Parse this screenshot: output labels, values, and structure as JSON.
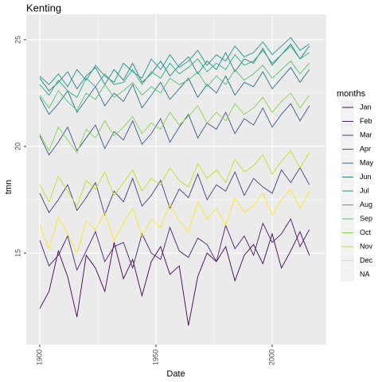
{
  "chart_data": {
    "type": "line",
    "title": "Kenting",
    "x_label": "Date",
    "y_label": "tmn",
    "legend_title": "months",
    "legend": "right",
    "grid": true,
    "x": [
      1900,
      1904,
      1908,
      1912,
      1916,
      1920,
      1924,
      1928,
      1932,
      1936,
      1940,
      1944,
      1948,
      1952,
      1956,
      1960,
      1964,
      1968,
      1972,
      1976,
      1980,
      1984,
      1988,
      1992,
      1996,
      2000,
      2004,
      2008,
      2012,
      2016
    ],
    "xlim": [
      1894.2,
      2023.3
    ],
    "xticks": [
      1900,
      1950,
      2000
    ],
    "ylim": [
      10.71,
      26.19
    ],
    "yticks": [
      15,
      20,
      25
    ],
    "series": [
      {
        "name": "Jan",
        "color": "#440154",
        "values": [
          12.4,
          13.2,
          15.1,
          13.9,
          12.0,
          14.9,
          14.3,
          13.2,
          15.5,
          13.8,
          14.7,
          13.0,
          14.6,
          15.3,
          14.0,
          14.4,
          11.6,
          13.9,
          15.0,
          14.6,
          15.3,
          13.7,
          14.9,
          15.4,
          14.5,
          15.9,
          14.3,
          15.1,
          16.0,
          14.9
        ]
      },
      {
        "name": "Feb",
        "color": "#482173",
        "values": [
          15.6,
          14.4,
          14.9,
          15.8,
          14.2,
          15.1,
          16.0,
          14.6,
          15.3,
          15.5,
          14.3,
          15.9,
          15.0,
          14.7,
          16.2,
          15.1,
          14.8,
          15.7,
          15.4,
          14.6,
          16.3,
          15.2,
          15.8,
          14.9,
          16.4,
          15.5,
          15.9,
          16.6,
          15.3,
          16.1
        ]
      },
      {
        "name": "Mar",
        "color": "#433E85",
        "values": [
          17.8,
          16.9,
          17.5,
          18.2,
          17.0,
          17.6,
          18.3,
          16.8,
          17.9,
          17.4,
          18.5,
          17.2,
          17.7,
          18.4,
          17.1,
          18.0,
          17.6,
          18.7,
          17.5,
          18.2,
          17.9,
          18.8,
          17.7,
          18.5,
          18.1,
          17.8,
          18.9,
          18.3,
          19.0,
          18.2
        ]
      },
      {
        "name": "Apr",
        "color": "#38598C",
        "values": [
          20.5,
          19.6,
          20.2,
          20.9,
          19.8,
          20.4,
          21.0,
          19.9,
          20.7,
          20.3,
          21.2,
          20.1,
          20.6,
          21.3,
          20.2,
          20.9,
          21.5,
          20.4,
          21.1,
          20.8,
          21.6,
          20.6,
          21.3,
          21.0,
          21.8,
          20.9,
          21.5,
          22.0,
          21.2,
          21.9
        ]
      },
      {
        "name": "May",
        "color": "#2D708E",
        "values": [
          22.3,
          21.5,
          22.0,
          22.6,
          21.6,
          22.2,
          22.8,
          21.9,
          22.5,
          22.1,
          22.9,
          21.8,
          22.4,
          23.0,
          22.2,
          22.7,
          23.2,
          22.3,
          22.9,
          22.5,
          23.3,
          22.4,
          23.0,
          22.8,
          23.5,
          22.7,
          23.2,
          23.7,
          23.0,
          23.6
        ]
      },
      {
        "name": "Jun",
        "color": "#25858E",
        "values": [
          23.2,
          22.6,
          23.0,
          23.5,
          22.7,
          23.3,
          23.7,
          22.9,
          23.6,
          23.1,
          23.9,
          23.0,
          23.4,
          24.0,
          23.3,
          23.8,
          24.2,
          23.4,
          24.0,
          23.6,
          24.4,
          23.5,
          24.1,
          23.9,
          24.6,
          23.8,
          24.3,
          24.8,
          24.1,
          24.7
        ]
      },
      {
        "name": "Jul",
        "color": "#1E9B8A",
        "values": [
          23.3,
          22.9,
          23.4,
          22.8,
          23.6,
          23.1,
          23.8,
          23.3,
          23.0,
          23.9,
          23.5,
          23.2,
          24.1,
          23.6,
          24.3,
          23.7,
          24.0,
          24.5,
          23.8,
          24.3,
          24.0,
          24.7,
          24.2,
          24.4,
          24.9,
          24.3,
          24.7,
          25.1,
          24.5,
          24.8
        ]
      },
      {
        "name": "Aug",
        "color": "#2BB07F",
        "values": [
          22.9,
          22.4,
          23.1,
          22.6,
          22.3,
          23.2,
          22.8,
          23.4,
          22.9,
          23.0,
          23.6,
          22.9,
          23.5,
          23.2,
          23.9,
          23.4,
          23.7,
          24.1,
          23.5,
          23.9,
          23.6,
          24.3,
          23.8,
          24.0,
          24.5,
          23.9,
          24.3,
          24.7,
          24.1,
          24.4
        ]
      },
      {
        "name": "Sep",
        "color": "#51C56A",
        "values": [
          22.4,
          21.8,
          22.6,
          22.1,
          21.7,
          22.5,
          22.2,
          22.9,
          22.3,
          22.6,
          23.0,
          22.4,
          22.8,
          22.5,
          23.2,
          22.9,
          23.1,
          23.5,
          22.8,
          23.3,
          22.9,
          23.6,
          23.1,
          23.4,
          23.8,
          23.2,
          23.6,
          24.0,
          23.4,
          23.9
        ]
      },
      {
        "name": "Oct",
        "color": "#85D54A",
        "values": [
          20.6,
          19.8,
          20.9,
          20.3,
          19.7,
          20.8,
          20.4,
          21.2,
          20.5,
          20.9,
          21.4,
          20.6,
          21.1,
          20.8,
          21.6,
          21.0,
          21.4,
          21.9,
          21.1,
          21.6,
          21.2,
          22.0,
          21.5,
          21.8,
          22.3,
          21.6,
          22.1,
          22.5,
          21.8,
          22.4
        ]
      },
      {
        "name": "Nov",
        "color": "#C2DF23",
        "values": [
          18.2,
          17.4,
          18.6,
          17.9,
          17.2,
          18.4,
          18.0,
          18.8,
          17.7,
          18.3,
          18.9,
          17.9,
          18.5,
          18.2,
          19.0,
          18.4,
          18.1,
          19.2,
          18.5,
          18.9,
          18.3,
          19.4,
          18.8,
          19.1,
          19.6,
          18.7,
          19.3,
          19.8,
          19.0,
          19.7
        ]
      },
      {
        "name": "Dec",
        "color": "#FDE725",
        "values": [
          16.3,
          15.2,
          16.7,
          15.9,
          15.0,
          16.5,
          16.1,
          16.9,
          15.6,
          16.4,
          17.1,
          15.8,
          16.6,
          16.2,
          17.3,
          16.5,
          16.0,
          17.4,
          16.6,
          17.1,
          16.3,
          17.6,
          16.9,
          17.2,
          17.8,
          16.8,
          17.5,
          18.0,
          17.1,
          17.9
        ]
      },
      {
        "name": "NA",
        "color": null,
        "values": [
          null,
          null,
          null,
          null,
          null,
          null,
          null,
          null,
          null,
          null,
          null,
          null,
          null,
          null,
          null,
          null,
          null,
          null,
          null,
          null,
          null,
          null,
          null,
          null,
          null,
          null,
          null,
          null,
          null,
          null
        ]
      }
    ]
  }
}
